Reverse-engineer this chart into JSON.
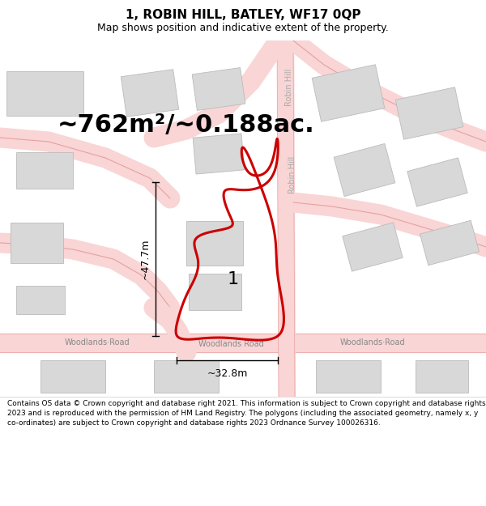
{
  "title": "1, ROBIN HILL, BATLEY, WF17 0QP",
  "subtitle": "Map shows position and indicative extent of the property.",
  "footer": "Contains OS data © Crown copyright and database right 2021. This information is subject to Crown copyright and database rights 2023 and is reproduced with the permission of HM Land Registry. The polygons (including the associated geometry, namely x, y co-ordinates) are subject to Crown copyright and database rights 2023 Ordnance Survey 100026316.",
  "area_label": "~762m²/~0.188ac.",
  "number_label": "1",
  "height_label": "~47.7m",
  "width_label": "~32.8m",
  "background_color": "#ffffff",
  "map_background": "#ffffff",
  "building_color": "#d8d8d8",
  "building_edge_color": "#bbbbbb",
  "road_fill_color": "#f9d5d5",
  "road_line_color": "#e8a0a0",
  "property_edge_color": "#cc0000",
  "property_linewidth": 2.2,
  "title_fontsize": 11,
  "subtitle_fontsize": 9,
  "area_fontsize": 22,
  "number_fontsize": 16,
  "dim_fontsize": 9,
  "road_label_fontsize": 7,
  "footer_fontsize": 6.5
}
